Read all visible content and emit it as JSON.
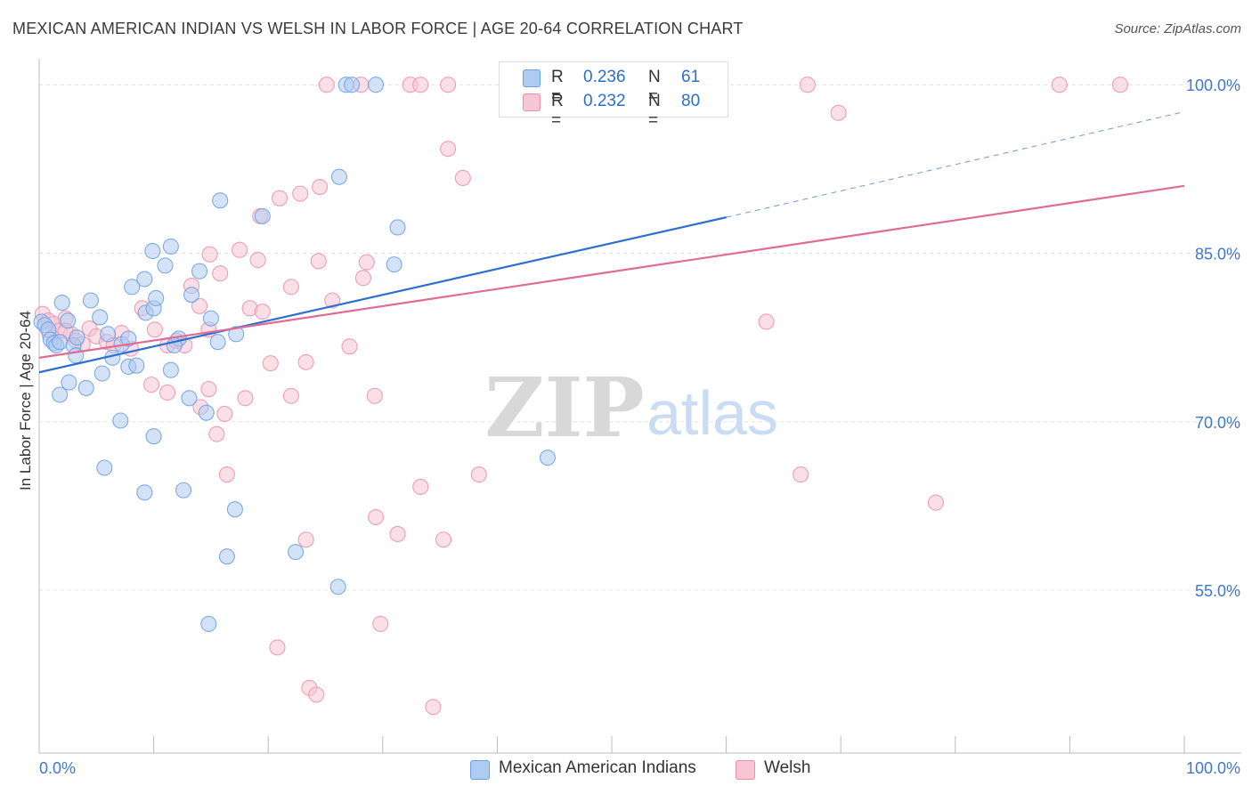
{
  "title": "MEXICAN AMERICAN INDIAN VS WELSH IN LABOR FORCE | AGE 20-64 CORRELATION CHART",
  "source": "Source: ZipAtlas.com",
  "watermark": {
    "zip": "ZIP",
    "atlas": "atlas"
  },
  "legend": {
    "r_label": "R =",
    "n_label": "N =",
    "rows": [
      {
        "r": "0.236",
        "n": "61",
        "color": "#aecbf0",
        "border": "#6a9fe0"
      },
      {
        "r": "0.232",
        "n": "80",
        "color": "#f7c5d4",
        "border": "#ec8fac"
      }
    ]
  },
  "bottom_legend": {
    "items": [
      {
        "label": "Mexican American Indians",
        "color": "#aecbf0",
        "border": "#6a9fe0"
      },
      {
        "label": "Welsh",
        "color": "#f7c5d4",
        "border": "#ec8fac"
      }
    ]
  },
  "chart_data": {
    "type": "scatter",
    "title": "MEXICAN AMERICAN INDIAN VS WELSH IN LABOR FORCE | AGE 20-64 CORRELATION CHART",
    "xlabel": "",
    "ylabel": "In Labor Force | Age 20-64",
    "xlim": [
      0,
      100
    ],
    "ylim": [
      40.5,
      102.0
    ],
    "x_tick_labels": [
      "0.0%",
      "100.0%"
    ],
    "y_ticks": [
      55.0,
      70.0,
      85.0,
      100.0
    ],
    "y_tick_labels": [
      "55.0%",
      "70.0%",
      "85.0%",
      "100.0%"
    ],
    "grid": true,
    "legend_position": "top-center",
    "series": [
      {
        "name": "Mexican American Indians",
        "color": "#6a9fe0",
        "fill": "#aecbf0",
        "trend": {
          "x": [
            0,
            60,
            100
          ],
          "y": [
            74.4,
            88.2,
            97.6
          ],
          "solid_until_x": 60
        },
        "points": [
          [
            0.2,
            78.9
          ],
          [
            0.5,
            78.6
          ],
          [
            0.8,
            78.2
          ],
          [
            1.0,
            77.3
          ],
          [
            1.3,
            77.0
          ],
          [
            1.5,
            76.8
          ],
          [
            1.8,
            77.1
          ],
          [
            2.5,
            79.0
          ],
          [
            3.0,
            76.8
          ],
          [
            3.3,
            77.5
          ],
          [
            2.0,
            80.6
          ],
          [
            4.5,
            80.8
          ],
          [
            5.3,
            79.3
          ],
          [
            6.0,
            77.8
          ],
          [
            7.2,
            76.9
          ],
          [
            7.8,
            77.4
          ],
          [
            9.3,
            79.7
          ],
          [
            10.0,
            80.1
          ],
          [
            12.2,
            77.4
          ],
          [
            11.0,
            83.9
          ],
          [
            8.1,
            82.0
          ],
          [
            9.2,
            82.7
          ],
          [
            10.2,
            81.0
          ],
          [
            13.3,
            81.3
          ],
          [
            15.0,
            79.2
          ],
          [
            17.2,
            77.8
          ],
          [
            15.6,
            77.1
          ],
          [
            11.8,
            76.8
          ],
          [
            7.8,
            74.9
          ],
          [
            8.5,
            75.0
          ],
          [
            5.5,
            74.3
          ],
          [
            6.4,
            75.7
          ],
          [
            3.2,
            75.9
          ],
          [
            2.6,
            73.5
          ],
          [
            4.1,
            73.0
          ],
          [
            1.8,
            72.4
          ],
          [
            11.5,
            74.6
          ],
          [
            13.1,
            72.1
          ],
          [
            14.6,
            70.8
          ],
          [
            7.1,
            70.1
          ],
          [
            10.0,
            68.7
          ],
          [
            5.7,
            65.9
          ],
          [
            9.2,
            63.7
          ],
          [
            12.6,
            63.9
          ],
          [
            17.1,
            62.2
          ],
          [
            16.4,
            58.0
          ],
          [
            22.4,
            58.4
          ],
          [
            26.1,
            55.3
          ],
          [
            14.8,
            52.0
          ],
          [
            9.9,
            85.2
          ],
          [
            11.5,
            85.6
          ],
          [
            15.8,
            89.7
          ],
          [
            19.5,
            88.3
          ],
          [
            26.2,
            91.8
          ],
          [
            31.3,
            87.3
          ],
          [
            26.8,
            100.0
          ],
          [
            27.3,
            100.0
          ],
          [
            29.4,
            100.0
          ],
          [
            44.4,
            66.8
          ],
          [
            31.0,
            84.0
          ],
          [
            14.0,
            83.4
          ]
        ]
      },
      {
        "name": "Welsh",
        "color": "#ec8fac",
        "fill": "#f7c5d4",
        "trend": {
          "x": [
            0,
            100
          ],
          "y": [
            75.7,
            91.0
          ]
        },
        "points": [
          [
            0.3,
            79.6
          ],
          [
            0.8,
            79.0
          ],
          [
            1.3,
            78.7
          ],
          [
            1.8,
            78.1
          ],
          [
            2.3,
            79.2
          ],
          [
            2.8,
            77.8
          ],
          [
            3.2,
            77.2
          ],
          [
            3.8,
            76.9
          ],
          [
            4.4,
            78.3
          ],
          [
            5.0,
            77.6
          ],
          [
            5.9,
            77.1
          ],
          [
            6.5,
            76.8
          ],
          [
            7.2,
            77.9
          ],
          [
            8.0,
            76.5
          ],
          [
            9.0,
            80.1
          ],
          [
            10.1,
            78.2
          ],
          [
            11.2,
            76.8
          ],
          [
            12.0,
            77.2
          ],
          [
            12.7,
            76.8
          ],
          [
            13.3,
            82.1
          ],
          [
            14.0,
            80.3
          ],
          [
            14.8,
            78.2
          ],
          [
            18.4,
            80.1
          ],
          [
            15.8,
            83.2
          ],
          [
            19.5,
            79.8
          ],
          [
            22.0,
            82.0
          ],
          [
            25.6,
            80.8
          ],
          [
            28.3,
            82.8
          ],
          [
            23.3,
            75.3
          ],
          [
            20.2,
            75.2
          ],
          [
            18.0,
            72.1
          ],
          [
            14.8,
            72.9
          ],
          [
            11.2,
            72.6
          ],
          [
            9.8,
            73.3
          ],
          [
            14.1,
            71.3
          ],
          [
            16.2,
            70.7
          ],
          [
            15.5,
            68.9
          ],
          [
            16.4,
            65.3
          ],
          [
            22.0,
            72.3
          ],
          [
            29.3,
            72.3
          ],
          [
            27.1,
            76.7
          ],
          [
            38.4,
            65.3
          ],
          [
            29.4,
            61.5
          ],
          [
            33.3,
            64.2
          ],
          [
            31.3,
            60.0
          ],
          [
            35.3,
            59.5
          ],
          [
            23.3,
            59.5
          ],
          [
            29.8,
            52.0
          ],
          [
            20.8,
            49.9
          ],
          [
            23.6,
            46.3
          ],
          [
            24.2,
            45.7
          ],
          [
            34.4,
            44.6
          ],
          [
            22.8,
            90.3
          ],
          [
            24.5,
            90.9
          ],
          [
            19.1,
            84.4
          ],
          [
            24.4,
            84.3
          ],
          [
            28.6,
            84.2
          ],
          [
            17.5,
            85.3
          ],
          [
            14.9,
            84.9
          ],
          [
            21.0,
            89.9
          ],
          [
            19.3,
            88.3
          ],
          [
            35.7,
            94.3
          ],
          [
            37.0,
            91.7
          ],
          [
            35.7,
            100.0
          ],
          [
            32.4,
            100.0
          ],
          [
            25.1,
            100.0
          ],
          [
            28.1,
            100.0
          ],
          [
            33.3,
            100.0
          ],
          [
            41.2,
            100.0
          ],
          [
            45.0,
            100.0
          ],
          [
            50.5,
            100.0
          ],
          [
            67.1,
            100.0
          ],
          [
            69.8,
            97.5
          ],
          [
            63.5,
            78.9
          ],
          [
            66.5,
            65.3
          ],
          [
            78.3,
            62.8
          ],
          [
            89.1,
            100.0
          ],
          [
            94.4,
            100.0
          ],
          [
            0.9,
            77.8
          ],
          [
            2.3,
            78.1
          ]
        ]
      }
    ]
  }
}
